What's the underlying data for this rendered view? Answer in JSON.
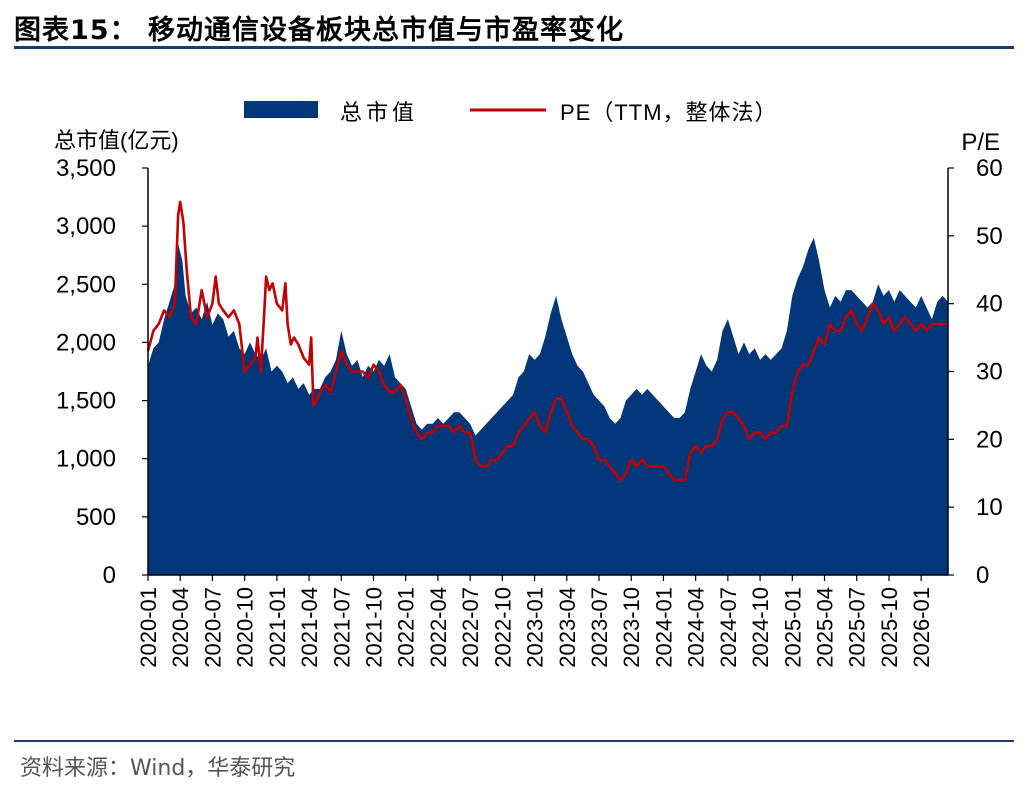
{
  "figure": {
    "title": "图表15：  移动通信设备板块总市值与市盈率变化",
    "source": "资料来源：Wind，华泰研究"
  },
  "colors": {
    "area": "#003778",
    "line": "#c00000",
    "rule": "#1f3a73"
  },
  "chart_data": {
    "type": "area+line",
    "title": "移动通信设备板块总市值与市盈率变化",
    "legend": {
      "position": "top-center",
      "entries": [
        "总市值",
        "PE（TTM，整体法）"
      ]
    },
    "y_left": {
      "label": "总市值(亿元)",
      "min": 0,
      "max": 3500,
      "ticks": [
        0,
        500,
        1000,
        1500,
        2000,
        2500,
        3000,
        3500
      ],
      "tick_labels": [
        "0",
        "500",
        "1,000",
        "1,500",
        "2,000",
        "2,500",
        "3,000",
        "3,500"
      ]
    },
    "y_right": {
      "label": "P/E",
      "min": 0,
      "max": 60,
      "ticks": [
        0,
        10,
        20,
        30,
        40,
        50,
        60
      ],
      "tick_labels": [
        "0",
        "10",
        "20",
        "30",
        "40",
        "50",
        "60"
      ]
    },
    "x_ticks": [
      "2020-01",
      "2020-04",
      "2020-07",
      "2020-10",
      "2021-01",
      "2021-04",
      "2021-07",
      "2021-10",
      "2022-01",
      "2022-04",
      "2022-07",
      "2022-10",
      "2023-01",
      "2023-04",
      "2023-07",
      "2023-10",
      "2024-01",
      "2024-04",
      "2024-07",
      "2024-10",
      "2025-01",
      "2025-04",
      "2025-07",
      "2025-10",
      "2026-01"
    ],
    "x_domain_months": [
      0,
      74.5
    ],
    "series": [
      {
        "name": "总市值",
        "type": "area",
        "axis": "left",
        "points": [
          [
            0,
            1800
          ],
          [
            0.5,
            1950
          ],
          [
            1,
            2000
          ],
          [
            1.5,
            2200
          ],
          [
            2,
            2350
          ],
          [
            2.5,
            2500
          ],
          [
            2.8,
            2850
          ],
          [
            3.2,
            2700
          ],
          [
            3.5,
            2400
          ],
          [
            4,
            2250
          ],
          [
            4.5,
            2300
          ],
          [
            5,
            2200
          ],
          [
            5.5,
            2350
          ],
          [
            6,
            2150
          ],
          [
            6.5,
            2250
          ],
          [
            7,
            2200
          ],
          [
            7.5,
            2050
          ],
          [
            8,
            2100
          ],
          [
            8.5,
            1950
          ],
          [
            9,
            1900
          ],
          [
            9.5,
            2000
          ],
          [
            10,
            1900
          ],
          [
            10.5,
            1850
          ],
          [
            11,
            1950
          ],
          [
            11.5,
            1750
          ],
          [
            12,
            1800
          ],
          [
            12.5,
            1750
          ],
          [
            13,
            1650
          ],
          [
            13.5,
            1700
          ],
          [
            14,
            1600
          ],
          [
            14.5,
            1650
          ],
          [
            15,
            1550
          ],
          [
            15.5,
            1600
          ],
          [
            16,
            1600
          ],
          [
            16.5,
            1700
          ],
          [
            17,
            1750
          ],
          [
            17.5,
            1850
          ],
          [
            18,
            2100
          ],
          [
            18.5,
            1900
          ],
          [
            19,
            1800
          ],
          [
            19.5,
            1850
          ],
          [
            20,
            1700
          ],
          [
            20.5,
            1800
          ],
          [
            21,
            1750
          ],
          [
            21.5,
            1850
          ],
          [
            22,
            1800
          ],
          [
            22.5,
            1900
          ],
          [
            23,
            1700
          ],
          [
            23.5,
            1650
          ],
          [
            24,
            1600
          ],
          [
            24.5,
            1450
          ],
          [
            25,
            1300
          ],
          [
            25.5,
            1250
          ],
          [
            26,
            1300
          ],
          [
            26.5,
            1300
          ],
          [
            27,
            1350
          ],
          [
            27.5,
            1300
          ],
          [
            28,
            1350
          ],
          [
            28.5,
            1400
          ],
          [
            29,
            1400
          ],
          [
            29.5,
            1350
          ],
          [
            30,
            1300
          ],
          [
            30.5,
            1200
          ],
          [
            31,
            1250
          ],
          [
            31.5,
            1300
          ],
          [
            32,
            1350
          ],
          [
            32.5,
            1400
          ],
          [
            33,
            1450
          ],
          [
            33.5,
            1500
          ],
          [
            34,
            1550
          ],
          [
            34.5,
            1700
          ],
          [
            35,
            1750
          ],
          [
            35.5,
            1900
          ],
          [
            36,
            1850
          ],
          [
            36.5,
            1900
          ],
          [
            37,
            2050
          ],
          [
            37.5,
            2250
          ],
          [
            38,
            2400
          ],
          [
            38.5,
            2200
          ],
          [
            39,
            2050
          ],
          [
            39.5,
            1900
          ],
          [
            40,
            1800
          ],
          [
            40.5,
            1750
          ],
          [
            41,
            1650
          ],
          [
            41.5,
            1550
          ],
          [
            42,
            1500
          ],
          [
            42.5,
            1450
          ],
          [
            43,
            1350
          ],
          [
            43.5,
            1300
          ],
          [
            44,
            1350
          ],
          [
            44.5,
            1500
          ],
          [
            45,
            1550
          ],
          [
            45.5,
            1600
          ],
          [
            46,
            1550
          ],
          [
            46.5,
            1600
          ],
          [
            47,
            1550
          ],
          [
            47.5,
            1500
          ],
          [
            48,
            1450
          ],
          [
            48.5,
            1400
          ],
          [
            49,
            1350
          ],
          [
            49.5,
            1350
          ],
          [
            50,
            1400
          ],
          [
            50.5,
            1600
          ],
          [
            51,
            1750
          ],
          [
            51.5,
            1900
          ],
          [
            52,
            1800
          ],
          [
            52.5,
            1750
          ],
          [
            53,
            1850
          ],
          [
            53.5,
            2100
          ],
          [
            54,
            2200
          ],
          [
            54.5,
            2050
          ],
          [
            55,
            1900
          ],
          [
            55.5,
            2000
          ],
          [
            56,
            1900
          ],
          [
            56.5,
            1950
          ],
          [
            57,
            1850
          ],
          [
            57.5,
            1900
          ],
          [
            58,
            1850
          ],
          [
            58.5,
            1900
          ],
          [
            59,
            1950
          ],
          [
            59.5,
            2100
          ],
          [
            60,
            2400
          ],
          [
            60.5,
            2550
          ],
          [
            61,
            2650
          ],
          [
            61.5,
            2800
          ],
          [
            62,
            2900
          ],
          [
            62.5,
            2700
          ],
          [
            63,
            2450
          ],
          [
            63.5,
            2300
          ],
          [
            64,
            2400
          ],
          [
            64.5,
            2350
          ],
          [
            65,
            2450
          ],
          [
            65.5,
            2450
          ],
          [
            66,
            2400
          ],
          [
            66.5,
            2350
          ],
          [
            67,
            2300
          ],
          [
            67.5,
            2350
          ],
          [
            68,
            2500
          ],
          [
            68.5,
            2400
          ],
          [
            69,
            2450
          ],
          [
            69.5,
            2350
          ],
          [
            70,
            2450
          ],
          [
            70.5,
            2400
          ],
          [
            71,
            2350
          ],
          [
            71.5,
            2300
          ],
          [
            72,
            2400
          ],
          [
            72.5,
            2300
          ],
          [
            73,
            2200
          ],
          [
            73.5,
            2350
          ],
          [
            74,
            2400
          ],
          [
            74.5,
            2350
          ]
        ]
      },
      {
        "name": "PE（TTM，整体法）",
        "type": "line",
        "axis": "right",
        "points": [
          [
            0,
            33
          ],
          [
            0.5,
            36
          ],
          [
            1,
            37
          ],
          [
            1.5,
            39
          ],
          [
            2,
            38
          ],
          [
            2.5,
            40
          ],
          [
            2.8,
            53
          ],
          [
            3.0,
            55
          ],
          [
            3.3,
            52
          ],
          [
            3.6,
            45
          ],
          [
            4,
            38
          ],
          [
            4.5,
            37
          ],
          [
            5,
            42
          ],
          [
            5.5,
            38
          ],
          [
            6,
            40
          ],
          [
            6.3,
            44
          ],
          [
            6.6,
            40
          ],
          [
            7,
            39
          ],
          [
            7.5,
            38
          ],
          [
            8,
            39
          ],
          [
            8.5,
            37
          ],
          [
            9,
            30
          ],
          [
            9.5,
            31
          ],
          [
            10,
            32
          ],
          [
            10.2,
            35
          ],
          [
            10.5,
            30
          ],
          [
            10.8,
            38
          ],
          [
            11,
            44
          ],
          [
            11.3,
            42
          ],
          [
            11.6,
            43
          ],
          [
            12,
            40
          ],
          [
            12.5,
            39
          ],
          [
            12.8,
            43
          ],
          [
            13,
            37
          ],
          [
            13.3,
            34
          ],
          [
            13.6,
            35
          ],
          [
            14,
            34
          ],
          [
            14.5,
            32
          ],
          [
            15,
            31
          ],
          [
            15.2,
            35
          ],
          [
            15.4,
            25
          ],
          [
            15.8,
            26
          ],
          [
            16,
            27
          ],
          [
            16.5,
            28
          ],
          [
            17,
            27
          ],
          [
            17.5,
            30
          ],
          [
            18,
            33
          ],
          [
            18.5,
            31
          ],
          [
            19,
            30
          ],
          [
            19.5,
            30
          ],
          [
            20,
            30
          ],
          [
            20.5,
            29
          ],
          [
            21,
            31
          ],
          [
            21.5,
            30
          ],
          [
            22,
            28
          ],
          [
            22.5,
            27
          ],
          [
            23,
            27
          ],
          [
            23.5,
            28
          ],
          [
            24,
            26
          ],
          [
            24.5,
            23
          ],
          [
            25,
            21
          ],
          [
            25.5,
            20
          ],
          [
            26,
            21
          ],
          [
            26.5,
            21
          ],
          [
            27,
            22
          ],
          [
            27.5,
            22
          ],
          [
            28,
            22
          ],
          [
            28.5,
            21
          ],
          [
            29,
            22
          ],
          [
            29.5,
            21
          ],
          [
            30,
            21
          ],
          [
            30.5,
            17
          ],
          [
            31,
            16
          ],
          [
            31.5,
            16
          ],
          [
            32,
            17
          ],
          [
            32.5,
            17
          ],
          [
            33,
            18
          ],
          [
            33.5,
            19
          ],
          [
            34,
            19
          ],
          [
            34.5,
            21
          ],
          [
            35,
            22
          ],
          [
            35.5,
            23
          ],
          [
            36,
            24
          ],
          [
            36.5,
            22
          ],
          [
            37,
            21
          ],
          [
            37.5,
            24
          ],
          [
            38,
            26
          ],
          [
            38.5,
            26
          ],
          [
            39,
            24
          ],
          [
            39.5,
            22
          ],
          [
            40,
            21
          ],
          [
            40.5,
            20
          ],
          [
            41,
            20
          ],
          [
            41.5,
            19
          ],
          [
            42,
            17
          ],
          [
            42.5,
            17
          ],
          [
            43,
            16
          ],
          [
            43.5,
            15
          ],
          [
            44,
            14
          ],
          [
            44.5,
            15
          ],
          [
            45,
            17
          ],
          [
            45.5,
            16
          ],
          [
            46,
            17
          ],
          [
            46.5,
            16
          ],
          [
            47,
            16
          ],
          [
            47.5,
            16
          ],
          [
            48,
            16
          ],
          [
            48.5,
            15
          ],
          [
            49,
            14
          ],
          [
            49.5,
            14
          ],
          [
            50,
            14
          ],
          [
            50.5,
            18
          ],
          [
            51,
            19
          ],
          [
            51.5,
            18
          ],
          [
            52,
            19
          ],
          [
            52.5,
            19
          ],
          [
            53,
            20
          ],
          [
            53.5,
            23
          ],
          [
            54,
            24
          ],
          [
            54.5,
            24
          ],
          [
            55,
            23
          ],
          [
            55.5,
            22
          ],
          [
            56,
            20
          ],
          [
            56.5,
            21
          ],
          [
            57,
            21
          ],
          [
            57.5,
            20
          ],
          [
            58,
            21
          ],
          [
            58.5,
            21
          ],
          [
            59,
            22
          ],
          [
            59.5,
            22
          ],
          [
            60,
            27
          ],
          [
            60.5,
            30
          ],
          [
            61,
            31
          ],
          [
            61.5,
            31
          ],
          [
            62,
            33
          ],
          [
            62.5,
            35
          ],
          [
            63,
            34
          ],
          [
            63.5,
            37
          ],
          [
            64,
            36
          ],
          [
            64.5,
            36
          ],
          [
            65,
            38
          ],
          [
            65.5,
            39
          ],
          [
            66,
            37
          ],
          [
            66.5,
            36
          ],
          [
            67,
            38
          ],
          [
            67.5,
            40
          ],
          [
            68,
            39
          ],
          [
            68.5,
            37
          ],
          [
            69,
            38
          ],
          [
            69.5,
            36
          ],
          [
            70,
            37
          ],
          [
            70.5,
            38
          ],
          [
            71,
            37
          ],
          [
            71.5,
            36
          ],
          [
            72,
            37
          ],
          [
            72.5,
            36
          ],
          [
            73,
            37
          ],
          [
            73.5,
            37
          ],
          [
            74,
            37
          ],
          [
            74.5,
            37
          ]
        ]
      }
    ]
  }
}
